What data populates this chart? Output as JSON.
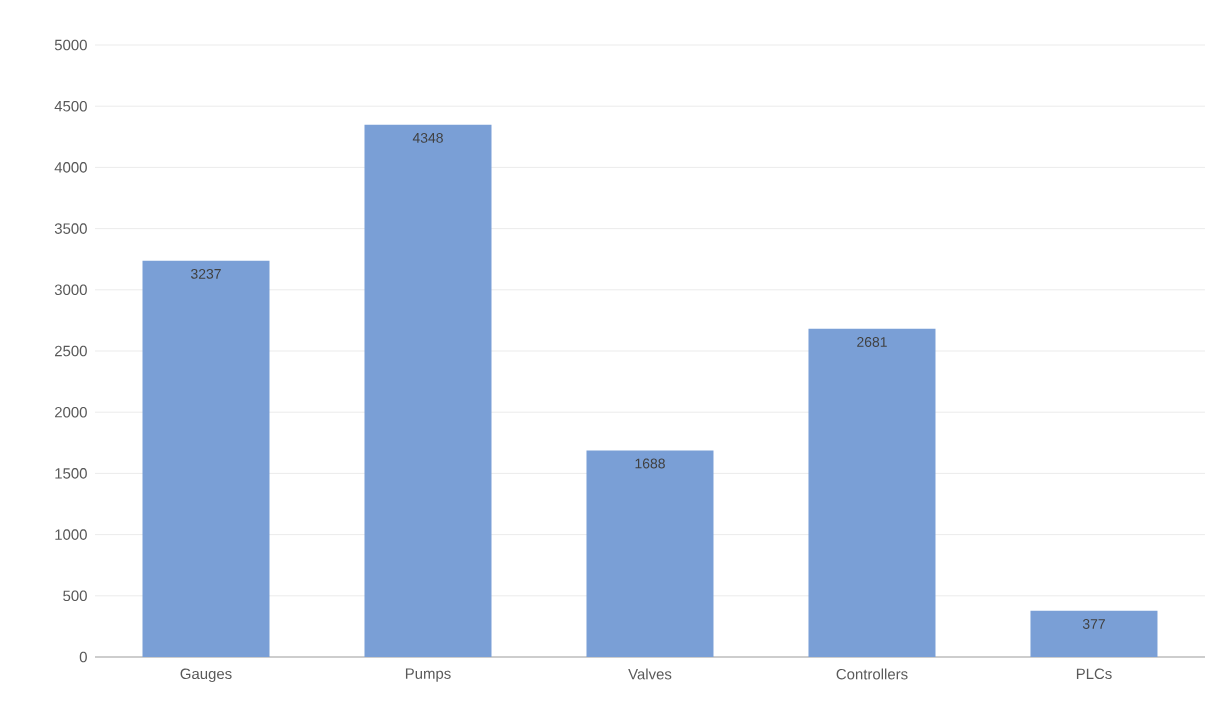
{
  "chart_data": {
    "type": "bar",
    "categories": [
      "Gauges",
      "Pumps",
      "Valves",
      "Controllers",
      "PLCs"
    ],
    "values": [
      3237,
      4348,
      1688,
      2681,
      377
    ],
    "color": "#7a9fd6",
    "ylim": [
      0,
      5000
    ],
    "yticks": [
      0,
      500,
      1000,
      1500,
      2000,
      2500,
      3000,
      3500,
      4000,
      4500,
      5000
    ],
    "grid": "y",
    "data_labels": true
  }
}
